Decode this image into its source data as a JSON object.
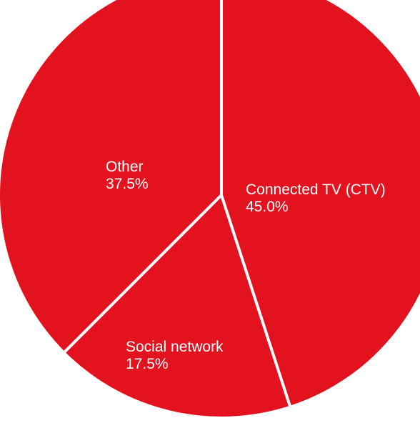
{
  "chart_data": {
    "type": "pie",
    "title": "",
    "slices": [
      {
        "label": "Connected TV (CTV)",
        "value": 45.0,
        "value_label": "45.0%",
        "color": "#e3121f"
      },
      {
        "label": "Social network",
        "value": 17.5,
        "value_label": "17.5%",
        "color": "#e3121f"
      },
      {
        "label": "Other",
        "value": 37.5,
        "value_label": "37.5%",
        "color": "#e3121f"
      }
    ],
    "start_angle_deg": 0,
    "direction": "clockwise",
    "separator_color": "#ffffff",
    "legend": "none",
    "label_placement": "inside"
  }
}
